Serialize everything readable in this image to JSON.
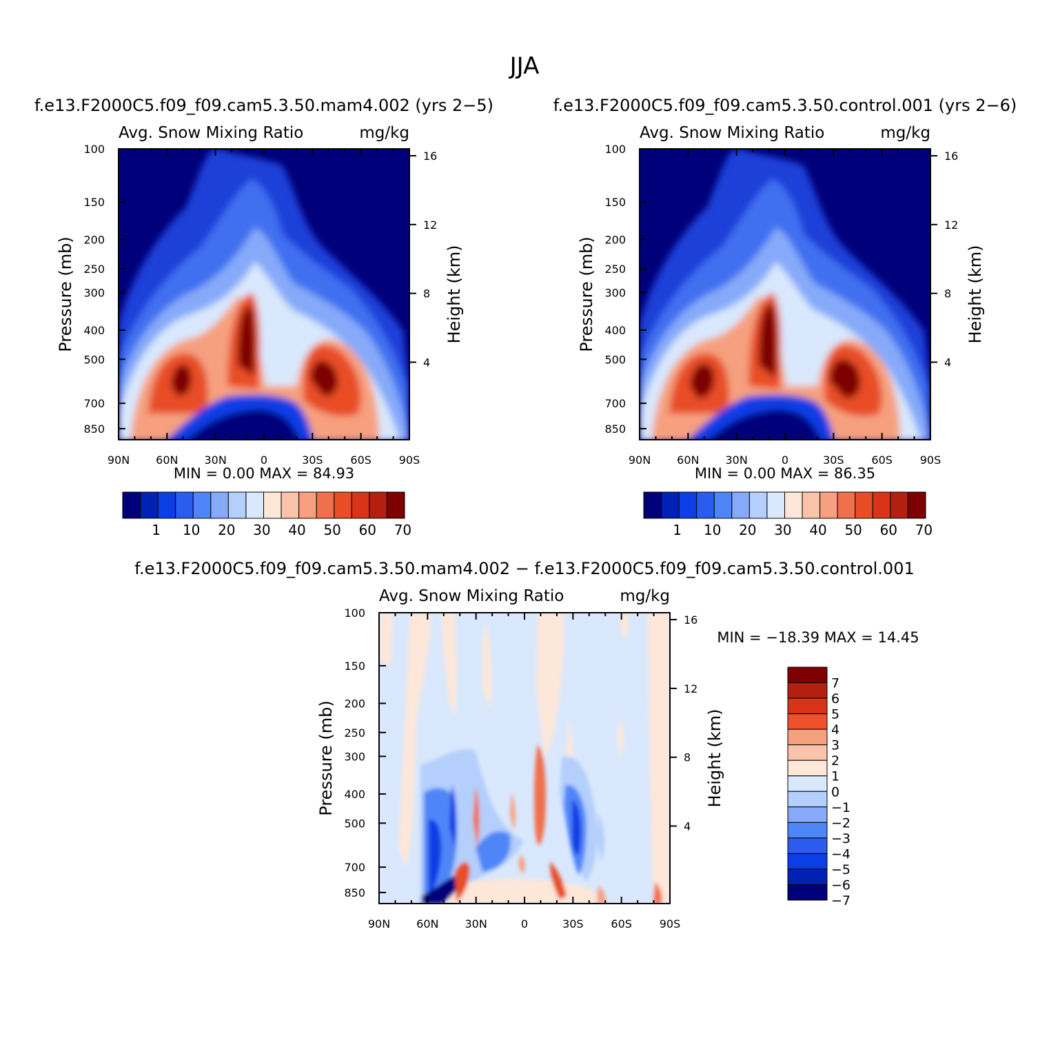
{
  "figure": {
    "title": "JJA"
  },
  "chart_data": [
    {
      "type": "heatmap",
      "case": "f.e13.F2000C5.f09_f09.cam5.3.50.mam4.002 (yrs 2−5)",
      "variable": "Avg. Snow Mixing Ratio",
      "units": "mg/kg",
      "ylabel": "Pressure (mb)",
      "ylabel2": "Height (km)",
      "x_ticks": [
        "90N",
        "60N",
        "30N",
        "0",
        "30S",
        "60S",
        "90S"
      ],
      "y_ticks": [
        "100",
        "150",
        "200",
        "250",
        "300",
        "400",
        "500",
        "700",
        "850"
      ],
      "y2_ticks": [
        "16",
        "12",
        "8",
        "4"
      ],
      "stats": "MIN = 0.00 MAX = 84.93",
      "min": 0.0,
      "max": 84.93,
      "colorbar_labels": [
        "1",
        "10",
        "20",
        "30",
        "40",
        "50",
        "60",
        "70"
      ],
      "colorbar_colors": [
        "#00007a",
        "#0022b4",
        "#0a3ee6",
        "#2a5cf0",
        "#4f86f7",
        "#86aaf9",
        "#b4cffb",
        "#d9e8fd",
        "#fde7d9",
        "#fbc3aa",
        "#f6a07f",
        "#f0704d",
        "#e84d26",
        "#d93418",
        "#b32010",
        "#7e0000"
      ],
      "peaks": [
        {
          "lat": 55,
          "level": "600",
          "value": 84
        },
        {
          "lat": 12,
          "level": "400",
          "value": 84
        },
        {
          "lat": -33,
          "level": "600",
          "value": 80
        }
      ]
    },
    {
      "type": "heatmap",
      "case": "f.e13.F2000C5.f09_f09.cam5.3.50.control.001 (yrs 2−6)",
      "variable": "Avg. Snow Mixing Ratio",
      "units": "mg/kg",
      "ylabel": "Pressure (mb)",
      "ylabel2": "Height (km)",
      "x_ticks": [
        "90N",
        "60N",
        "30N",
        "0",
        "30S",
        "60S",
        "90S"
      ],
      "y_ticks": [
        "100",
        "150",
        "200",
        "250",
        "300",
        "400",
        "500",
        "700",
        "850"
      ],
      "y2_ticks": [
        "16",
        "12",
        "8",
        "4"
      ],
      "stats": "MIN = 0.00 MAX = 86.35",
      "min": 0.0,
      "max": 86.35,
      "colorbar_labels": [
        "1",
        "10",
        "20",
        "30",
        "40",
        "50",
        "60",
        "70"
      ],
      "colorbar_colors": [
        "#00007a",
        "#0022b4",
        "#0a3ee6",
        "#2a5cf0",
        "#4f86f7",
        "#86aaf9",
        "#b4cffb",
        "#d9e8fd",
        "#fde7d9",
        "#fbc3aa",
        "#f6a07f",
        "#f0704d",
        "#e84d26",
        "#d93418",
        "#b32010",
        "#7e0000"
      ],
      "peaks": [
        {
          "lat": 55,
          "level": "600",
          "value": 86
        },
        {
          "lat": 12,
          "level": "400",
          "value": 86
        },
        {
          "lat": -33,
          "level": "600",
          "value": 82
        }
      ]
    },
    {
      "type": "heatmap",
      "case": "f.e13.F2000C5.f09_f09.cam5.3.50.mam4.002 − f.e13.F2000C5.f09_f09.cam5.3.50.control.001",
      "variable": "Avg. Snow Mixing Ratio",
      "units": "mg/kg",
      "ylabel": "Pressure (mb)",
      "ylabel2": "Height (km)",
      "x_ticks": [
        "90N",
        "60N",
        "30N",
        "0",
        "30S",
        "60S",
        "90S"
      ],
      "y_ticks": [
        "100",
        "150",
        "200",
        "250",
        "300",
        "400",
        "500",
        "700",
        "850"
      ],
      "y2_ticks": [
        "16",
        "12",
        "8",
        "4"
      ],
      "stats": "MIN = −18.39 MAX = 14.45",
      "min": -18.39,
      "max": 14.45,
      "colorbar_labels": [
        "7",
        "6",
        "5",
        "4",
        "3",
        "2",
        "1",
        "0",
        "−1",
        "−2",
        "−3",
        "−4",
        "−5",
        "−6",
        "−7"
      ],
      "colorbar_colors": [
        "#7e0000",
        "#b32010",
        "#d93418",
        "#f0502a",
        "#f6a07f",
        "#fbc3aa",
        "#fde7d9",
        "#d9e8fd",
        "#b4cffb",
        "#86aaf9",
        "#4f86f7",
        "#2a5cf0",
        "#0a3ee6",
        "#0022b4",
        "#00007a"
      ]
    }
  ]
}
